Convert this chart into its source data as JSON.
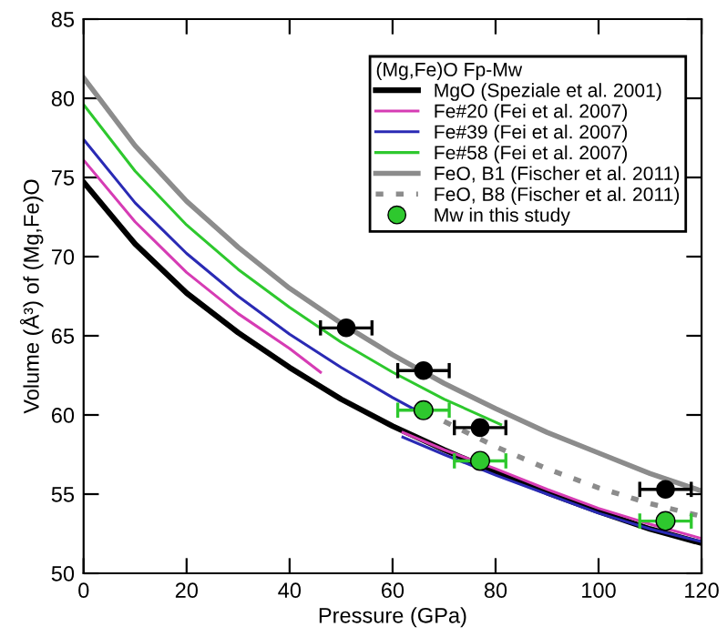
{
  "chart_data": {
    "type": "line",
    "xlabel": "Pressure (GPa)",
    "ylabel": "Volume (Å³) of (Mg,Fe)O",
    "legend_title": "(Mg,Fe)O Fp-Mw",
    "legend": "top right",
    "grid": false,
    "xlim": [
      0,
      120
    ],
    "ylim": [
      50,
      85
    ],
    "xticks": [
      0,
      20,
      40,
      60,
      80,
      100,
      120
    ],
    "yticks": [
      50,
      55,
      60,
      65,
      70,
      75,
      80,
      85
    ],
    "series": [
      {
        "name": "MgO (Speziale et al. 2001)",
        "color": "#000000",
        "line_style": "solid",
        "x": [
          0,
          10,
          20,
          30,
          40,
          50,
          60,
          70,
          80,
          90,
          100,
          110,
          120
        ],
        "values": [
          74.7,
          70.8,
          67.7,
          65.2,
          63.0,
          61.0,
          59.3,
          57.8,
          56.4,
          55.1,
          53.9,
          52.8,
          51.9
        ]
      },
      {
        "name": "Fe#20 (Fei et al. 2007)",
        "color": "#d63cb4",
        "line_style": "solid",
        "x": [
          0,
          10,
          20,
          30,
          40,
          46,
          55,
          62,
          70,
          80,
          90,
          100,
          110,
          120
        ],
        "values": [
          76.1,
          72.2,
          69.0,
          66.4,
          64.2,
          62.7,
          null,
          58.9,
          57.8,
          56.6,
          55.3,
          54.1,
          53.1,
          52.2
        ]
      },
      {
        "name": "Fe#39 (Fei et al. 2007)",
        "color": "#2a2ab4",
        "line_style": "solid",
        "x": [
          0,
          10,
          20,
          30,
          40,
          50,
          60,
          64,
          63,
          62,
          70,
          80,
          90,
          100,
          110,
          120
        ],
        "values": [
          77.4,
          73.4,
          70.2,
          67.5,
          65.1,
          63.0,
          61.1,
          60.4,
          null,
          58.6,
          57.5,
          56.2,
          55.0,
          53.8,
          52.8,
          52.0
        ]
      },
      {
        "name": "Fe#58 (Fei et al. 2007)",
        "color": "#2ec82e",
        "line_style": "solid",
        "x": [
          0,
          10,
          20,
          30,
          40,
          50,
          60,
          70,
          81
        ],
        "values": [
          79.6,
          75.4,
          72.0,
          69.2,
          66.8,
          64.6,
          62.7,
          61.0,
          59.4
        ]
      },
      {
        "name": "FeO, B1 (Fischer et al. 2011)",
        "color": "#8c8c8c",
        "line_style": "solid",
        "x": [
          0,
          10,
          20,
          30,
          40,
          50,
          60,
          70,
          80,
          90,
          100,
          110,
          120
        ],
        "values": [
          81.3,
          77.0,
          73.5,
          70.6,
          68.0,
          65.8,
          63.8,
          62.0,
          60.4,
          58.9,
          57.6,
          56.3,
          55.2
        ]
      },
      {
        "name": "FeO, B8 (Fischer et al. 2011)",
        "color": "#8c8c8c",
        "line_style": "dotted",
        "x": [
          70,
          80,
          90,
          100,
          110,
          120
        ],
        "values": [
          59.6,
          58.0,
          56.6,
          55.4,
          54.4,
          53.6
        ]
      },
      {
        "type": "scatter",
        "color": "#000000",
        "marker": "circle",
        "x": [
          51,
          66,
          77,
          113
        ],
        "values": [
          65.5,
          62.8,
          59.2,
          55.3
        ],
        "xerrors": [
          5,
          5,
          5,
          5
        ]
      },
      {
        "type": "scatter",
        "name": "Mw in this study",
        "color": "#2ec82e",
        "marker": "circle",
        "x": [
          66,
          77,
          113
        ],
        "values": [
          60.3,
          57.1,
          53.3
        ],
        "xerrors": [
          5,
          5,
          5
        ]
      }
    ]
  }
}
